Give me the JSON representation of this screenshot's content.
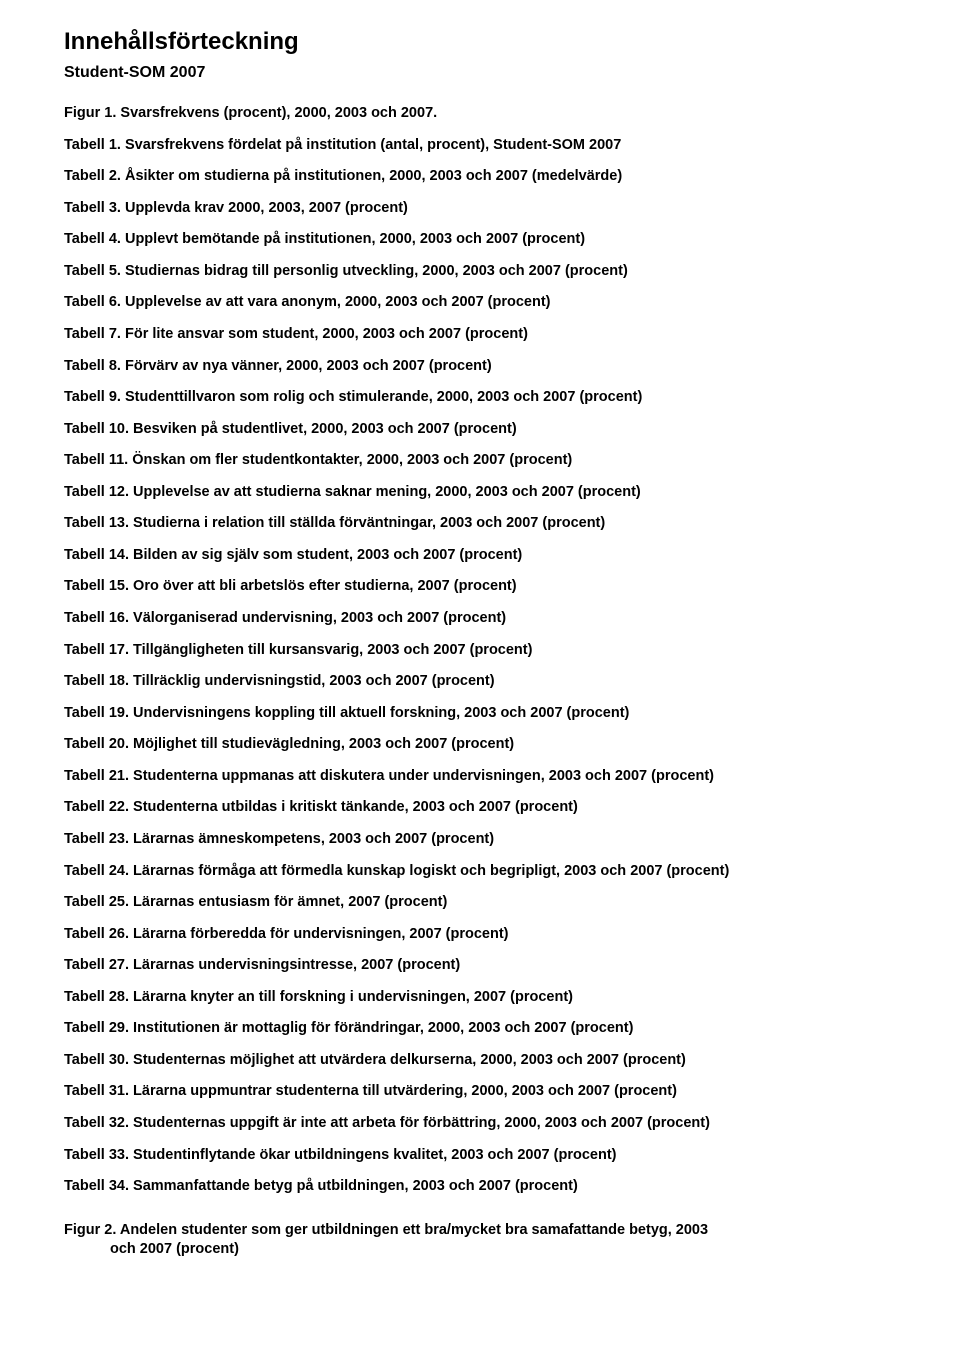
{
  "heading_main": "Innehållsförteckning",
  "heading_sub": "Student-SOM 2007",
  "entries": [
    "Figur 1. Svarsfrekvens (procent), 2000, 2003 och 2007.",
    "Tabell 1. Svarsfrekvens fördelat på institution (antal, procent), Student-SOM 2007",
    "Tabell 2. Åsikter om studierna på institutionen, 2000, 2003 och 2007 (medelvärde)",
    "Tabell 3. Upplevda krav 2000, 2003, 2007 (procent)",
    "Tabell 4. Upplevt bemötande på institutionen, 2000, 2003 och 2007 (procent)",
    "Tabell 5. Studiernas bidrag till personlig utveckling, 2000, 2003 och 2007 (procent)",
    "Tabell 6. Upplevelse av att vara anonym, 2000, 2003 och 2007 (procent)",
    "Tabell 7. För lite ansvar som student, 2000, 2003 och 2007 (procent)",
    "Tabell 8. Förvärv av nya vänner, 2000, 2003 och 2007 (procent)",
    "Tabell 9. Studenttillvaron som rolig och stimulerande, 2000, 2003 och 2007 (procent)",
    "Tabell 10. Besviken på studentlivet, 2000, 2003 och 2007 (procent)",
    "Tabell 11. Önskan om fler studentkontakter, 2000, 2003 och 2007 (procent)",
    "Tabell 12. Upplevelse av att studierna saknar mening, 2000, 2003 och 2007 (procent)",
    "Tabell 13. Studierna i relation till ställda förväntningar, 2003 och 2007 (procent)",
    "Tabell 14. Bilden av sig själv som student, 2003 och 2007 (procent)",
    "Tabell 15. Oro över att bli arbetslös efter studierna, 2007 (procent)",
    "Tabell 16. Välorganiserad undervisning, 2003 och 2007 (procent)",
    "Tabell 17. Tillgängligheten till kursansvarig, 2003 och 2007 (procent)",
    "Tabell 18. Tillräcklig undervisningstid, 2003 och 2007 (procent)",
    "Tabell 19. Undervisningens koppling till aktuell forskning, 2003 och 2007 (procent)",
    "Tabell 20. Möjlighet till studievägledning, 2003 och 2007 (procent)",
    "Tabell 21. Studenterna uppmanas att diskutera under undervisningen, 2003 och 2007 (procent)",
    "Tabell 22. Studenterna utbildas i kritiskt tänkande, 2003 och 2007 (procent)",
    "Tabell 23. Lärarnas ämneskompetens, 2003 och 2007 (procent)",
    "Tabell 24. Lärarnas förmåga att förmedla kunskap logiskt och begripligt, 2003 och 2007 (procent)",
    "Tabell 25. Lärarnas entusiasm för ämnet, 2007 (procent)",
    "Tabell 26. Lärarna förberedda för undervisningen, 2007 (procent)",
    "Tabell 27. Lärarnas undervisningsintresse, 2007 (procent)",
    "Tabell 28. Lärarna knyter an till forskning i undervisningen, 2007 (procent)",
    "Tabell 29. Institutionen är mottaglig för förändringar, 2000, 2003 och 2007 (procent)",
    "Tabell 30. Studenternas möjlighet att utvärdera delkurserna, 2000, 2003 och 2007 (procent)",
    "Tabell 31. Lärarna uppmuntrar studenterna till utvärdering, 2000, 2003 och 2007 (procent)",
    "Tabell 32. Studenternas uppgift är inte att arbeta för förbättring, 2000, 2003 och 2007 (procent)",
    "Tabell 33. Studentinflytande ökar utbildningens kvalitet, 2003 och 2007 (procent)",
    "Tabell 34. Sammanfattande betyg på utbildningen, 2003 och 2007 (procent)"
  ],
  "figure2_line1": "Figur 2. Andelen studenter som ger utbildningen ett bra/mycket bra samafattande betyg, 2003",
  "figure2_line2": "och 2007 (procent)"
}
